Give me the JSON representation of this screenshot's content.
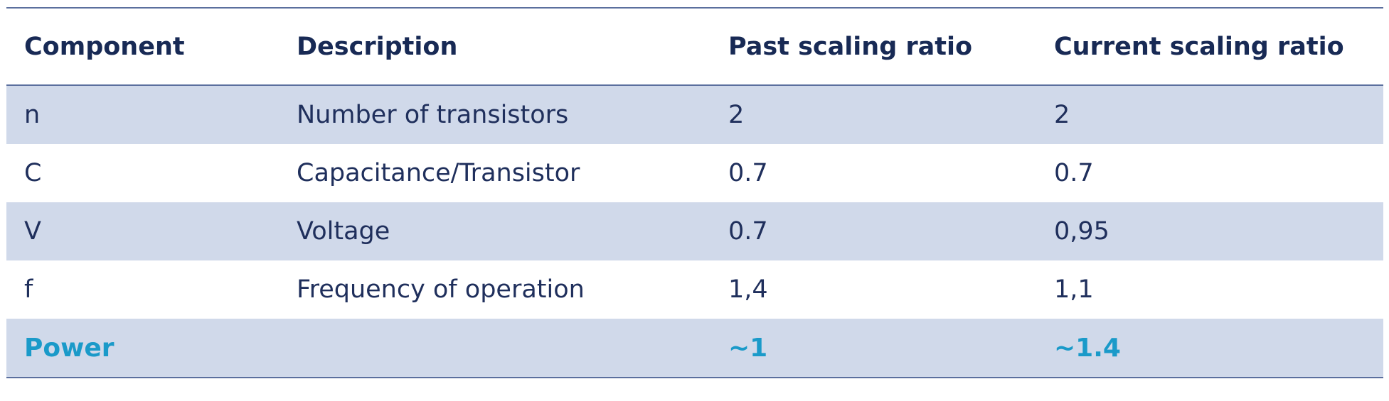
{
  "table": {
    "headers": [
      "Component",
      "Description",
      "Past scaling ratio",
      "Current scaling ratio"
    ],
    "rows": [
      [
        "n",
        "Number of transistors",
        "2",
        "2"
      ],
      [
        "C",
        "Capacitance/Transistor",
        "0.7",
        "0.7"
      ],
      [
        "V",
        "Voltage",
        "0.7",
        "0,95"
      ],
      [
        "f",
        "Frequency of operation",
        "1,4",
        "1,1"
      ]
    ],
    "total": [
      "Power",
      "",
      "~1",
      "~1.4"
    ],
    "colors": {
      "header_text": "#182a55",
      "body_text": "#1f2f5c",
      "shaded_row": "#d0d9ea",
      "rule": "#5b6f9e",
      "total_text": "#1a9ac9"
    }
  }
}
